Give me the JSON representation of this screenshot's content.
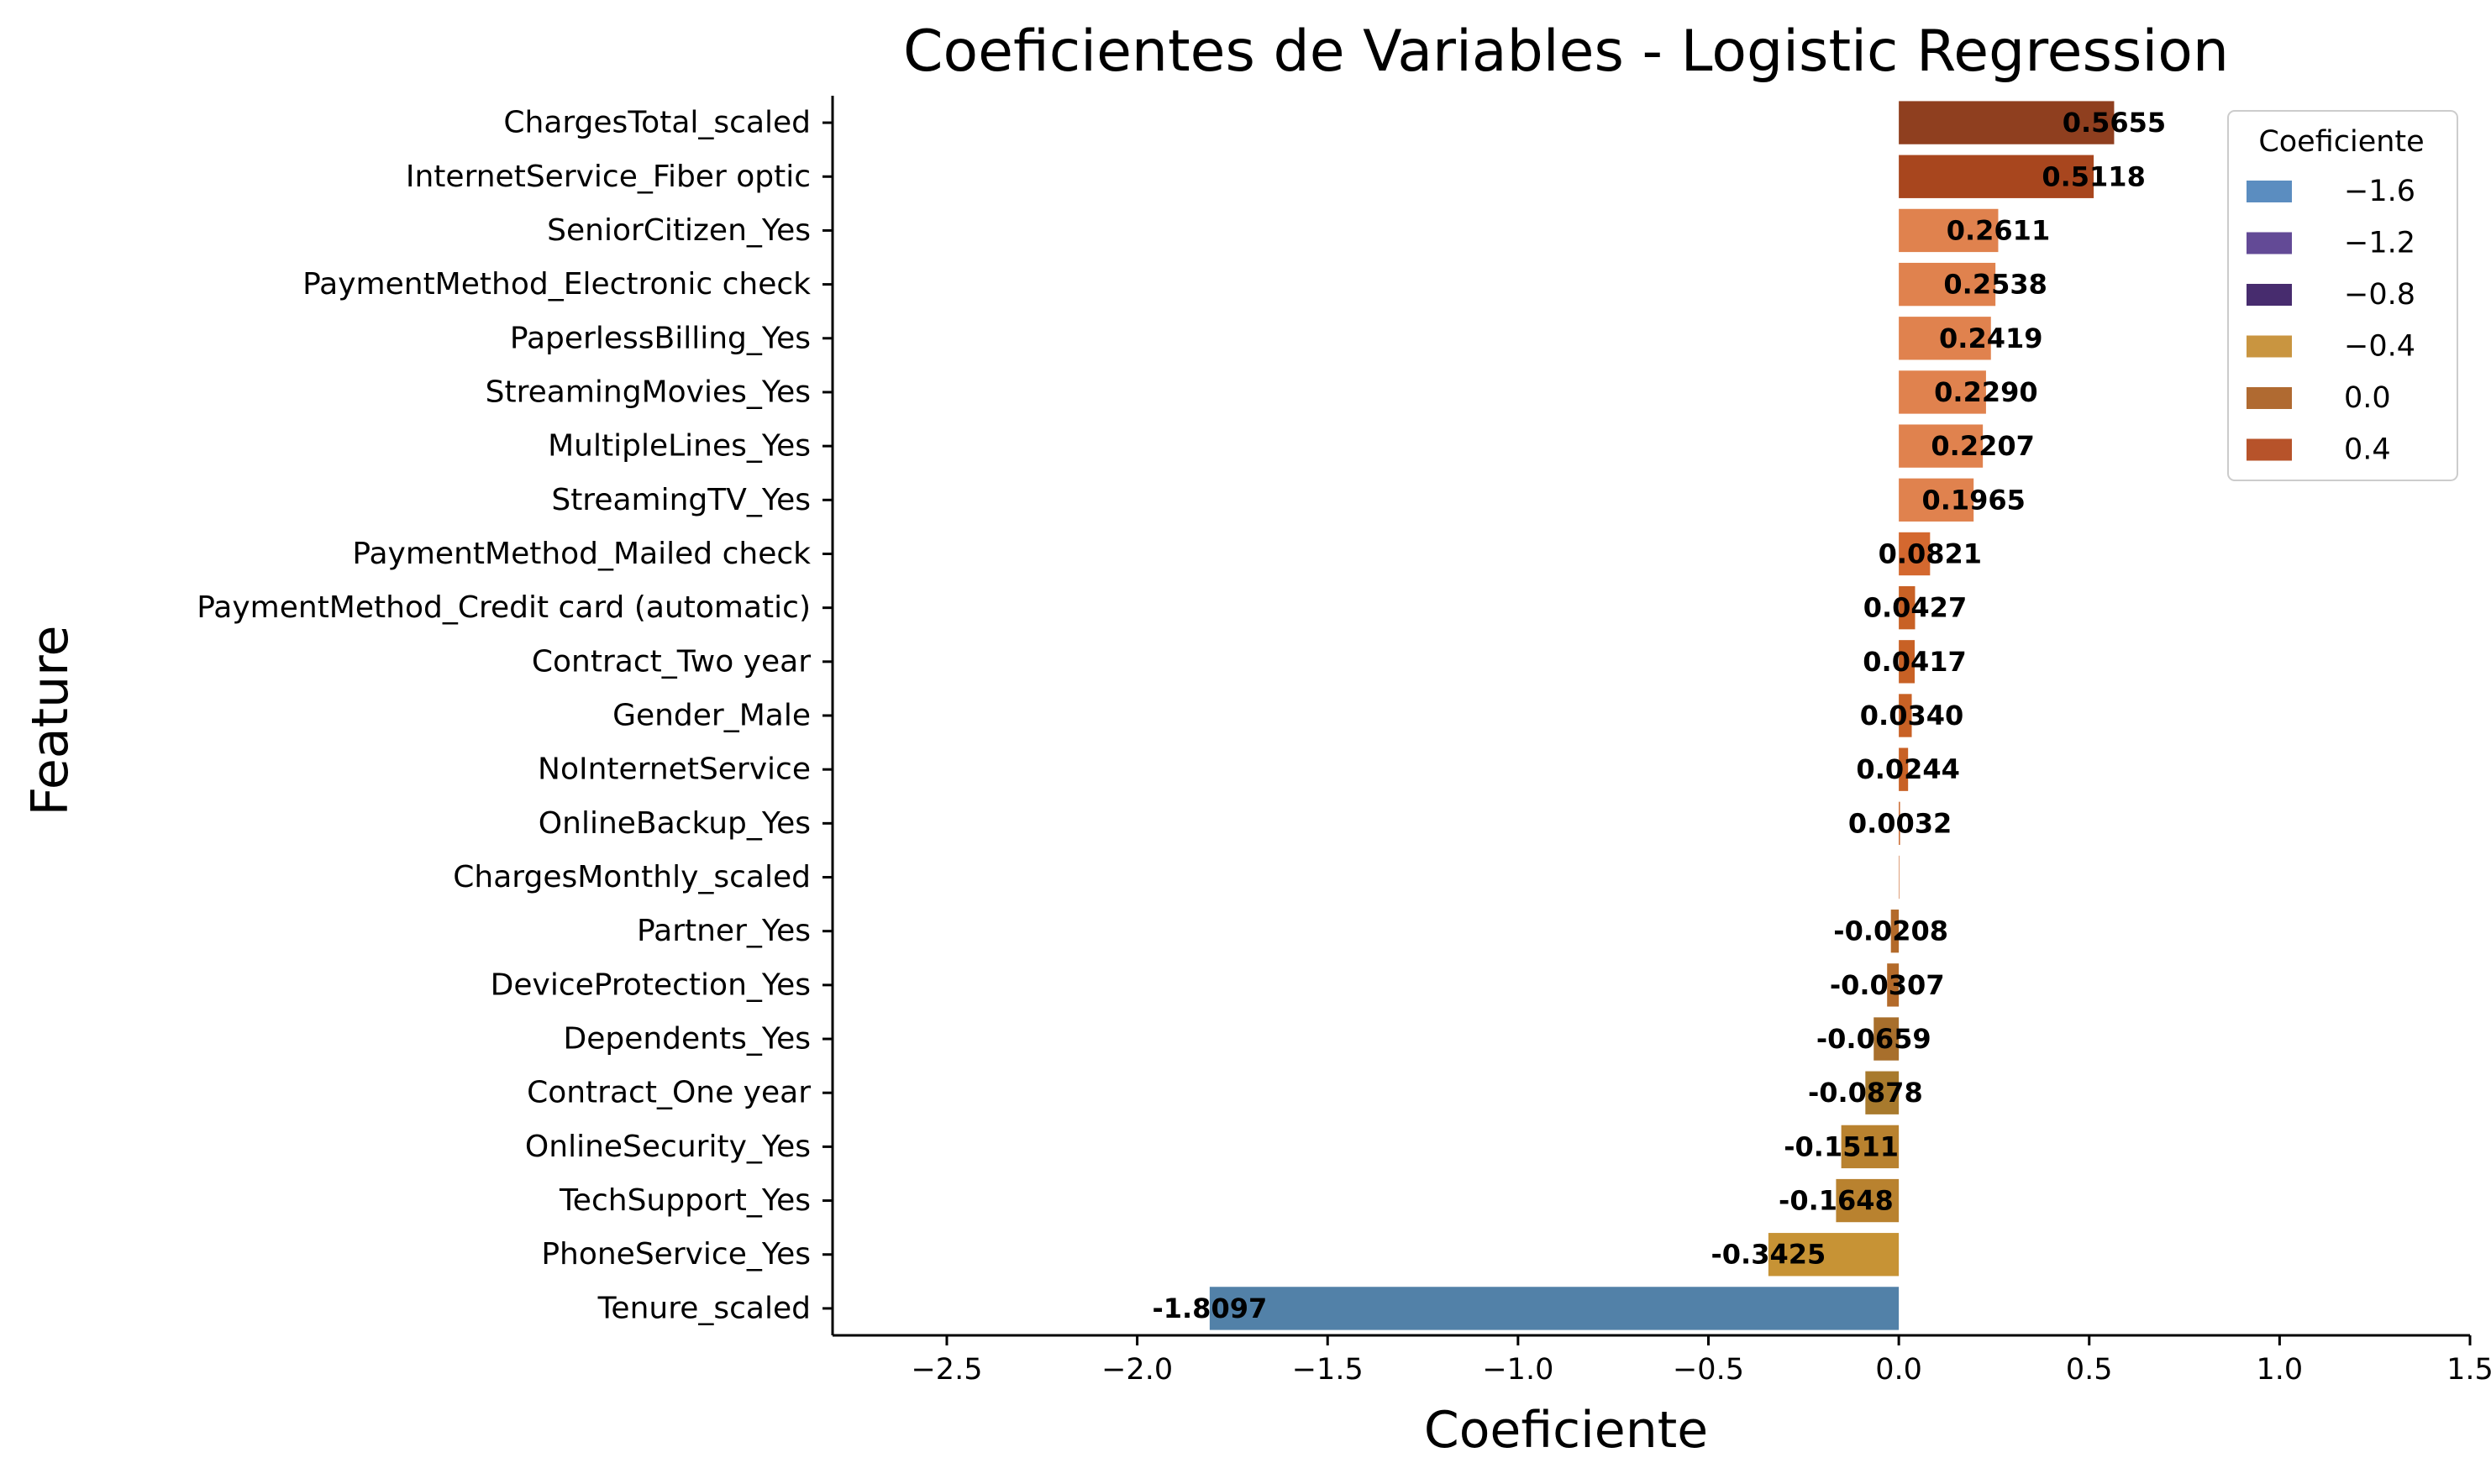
{
  "chart_data": {
    "type": "bar",
    "orientation": "horizontal",
    "title": "Coeficientes de Variables - Logistic Regression",
    "xlabel": "Coeficiente",
    "ylabel": "Feature",
    "xlim": [
      -2.8,
      1.5
    ],
    "xticks": [
      -2.5,
      -2.0,
      -1.5,
      -1.0,
      -0.5,
      0.0,
      0.5,
      1.0,
      1.5
    ],
    "xtick_labels": [
      "−2.5",
      "−2.0",
      "−1.5",
      "−1.0",
      "−0.5",
      "0.0",
      "0.5",
      "1.0",
      "1.5"
    ],
    "grid": false,
    "categories": [
      "ChargesTotal_scaled",
      "InternetService_Fiber optic",
      "SeniorCitizen_Yes",
      "PaymentMethod_Electronic check",
      "PaperlessBilling_Yes",
      "StreamingMovies_Yes",
      "MultipleLines_Yes",
      "StreamingTV_Yes",
      "PaymentMethod_Mailed check",
      "PaymentMethod_Credit card (automatic)",
      "Contract_Two year",
      "Gender_Male",
      "NoInternetService",
      "OnlineBackup_Yes",
      "ChargesMonthly_scaled",
      "Partner_Yes",
      "DeviceProtection_Yes",
      "Dependents_Yes",
      "Contract_One year",
      "OnlineSecurity_Yes",
      "TechSupport_Yes",
      "PhoneService_Yes",
      "Tenure_scaled"
    ],
    "values": [
      0.5655,
      0.5118,
      0.2611,
      0.2538,
      0.2419,
      0.229,
      0.2207,
      0.1965,
      0.0821,
      0.0427,
      0.0417,
      0.034,
      0.0244,
      0.0032,
      0.0,
      -0.0208,
      -0.0307,
      -0.0659,
      -0.0878,
      -0.1511,
      -0.1648,
      -0.3425,
      -1.8097
    ],
    "data_labels": [
      "0.5655",
      "0.5118",
      "0.2611",
      "0.2538",
      "0.2419",
      "0.2290",
      "0.2207",
      "0.1965",
      "0.0821",
      "0.0427",
      "0.0417",
      "0.0340",
      "0.0244",
      "0.0032",
      "",
      "-0.0208",
      "-0.0307",
      "-0.0659",
      "-0.0878",
      "-0.1511",
      "-0.1648",
      "-0.3425",
      "-1.8097"
    ],
    "bar_colors": [
      "#8f3f1f",
      "#a8461e",
      "#e0824e",
      "#e0824e",
      "#e0824e",
      "#e0824e",
      "#e0824e",
      "#e0824e",
      "#d4682f",
      "#c86125",
      "#c86125",
      "#c86125",
      "#c86125",
      "#c86125",
      "#c86125",
      "#b36a2a",
      "#b36a2a",
      "#a86f2c",
      "#a87a2d",
      "#b9822f",
      "#b9822f",
      "#c79335",
      "#5281a8"
    ],
    "legend": {
      "title": "Coeficiente",
      "position": "upper right",
      "entries": [
        {
          "label": "−1.6",
          "color": "#5b8dc0"
        },
        {
          "label": "−1.2",
          "color": "#634a96"
        },
        {
          "label": "−0.8",
          "color": "#472c6e"
        },
        {
          "label": "−0.4",
          "color": "#c99540"
        },
        {
          "label": "0.0",
          "color": "#b06a31"
        },
        {
          "label": "0.4",
          "color": "#b7532a"
        }
      ]
    }
  }
}
